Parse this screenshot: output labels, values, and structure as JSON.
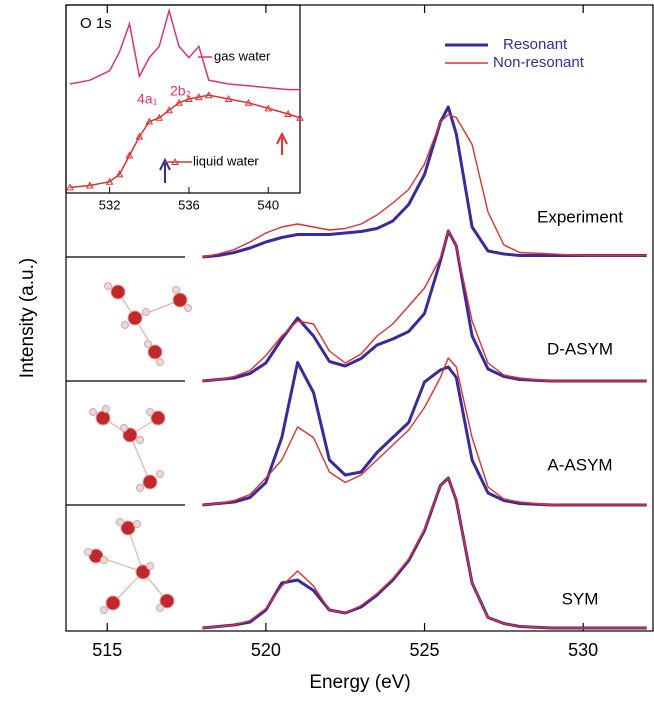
{
  "chart_data": [
    {
      "type": "line",
      "xlabel": "Energy (eV)",
      "ylabel": "Intensity (a.u.)",
      "xlim": [
        513.7,
        532.2
      ],
      "xticks": [
        515,
        520,
        525,
        530
      ],
      "x": [
        518,
        518.5,
        519,
        519.5,
        520,
        520.5,
        521,
        521.5,
        522,
        522.5,
        523,
        523.5,
        524,
        524.5,
        525,
        525.5,
        525.75,
        526,
        526.5,
        527,
        527.5,
        528,
        529,
        530,
        531,
        532
      ],
      "panels": [
        {
          "label": "Experiment",
          "series": [
            {
              "name": "Resonant",
              "color": "#3a2a9a",
              "values": [
                0,
                0.01,
                0.03,
                0.06,
                0.1,
                0.13,
                0.15,
                0.15,
                0.15,
                0.16,
                0.17,
                0.19,
                0.24,
                0.35,
                0.55,
                0.9,
                1.0,
                0.82,
                0.2,
                0.04,
                0.02,
                0.01,
                0.01,
                0.01,
                0.01,
                0.01
              ]
            },
            {
              "name": "Non-resonant",
              "color": "#e03030",
              "values": [
                0,
                0.02,
                0.05,
                0.1,
                0.16,
                0.2,
                0.22,
                0.2,
                0.18,
                0.19,
                0.22,
                0.28,
                0.36,
                0.45,
                0.62,
                0.9,
                0.95,
                0.93,
                0.75,
                0.3,
                0.08,
                0.03,
                0.02,
                0.01,
                0.01,
                0.01
              ]
            }
          ]
        },
        {
          "label": "D-ASYM",
          "series": [
            {
              "name": "Resonant",
              "color": "#3a2a9a",
              "values": [
                0,
                0.01,
                0.02,
                0.05,
                0.12,
                0.28,
                0.42,
                0.3,
                0.13,
                0.1,
                0.15,
                0.24,
                0.28,
                0.33,
                0.45,
                0.8,
                1.0,
                0.9,
                0.3,
                0.08,
                0.03,
                0.01,
                0,
                0,
                0,
                0
              ]
            },
            {
              "name": "Non-resonant",
              "color": "#e03030",
              "values": [
                0,
                0.01,
                0.03,
                0.07,
                0.17,
                0.3,
                0.4,
                0.38,
                0.2,
                0.12,
                0.18,
                0.3,
                0.38,
                0.5,
                0.62,
                0.82,
                1.0,
                0.9,
                0.4,
                0.12,
                0.04,
                0.02,
                0,
                0,
                0,
                0
              ]
            }
          ]
        },
        {
          "label": "A-ASYM",
          "series": [
            {
              "name": "Resonant",
              "color": "#3a2a9a",
              "values": [
                0,
                0.01,
                0.02,
                0.05,
                0.15,
                0.45,
                0.95,
                0.75,
                0.3,
                0.2,
                0.22,
                0.35,
                0.45,
                0.55,
                0.82,
                0.9,
                0.92,
                0.85,
                0.3,
                0.08,
                0.03,
                0.01,
                0,
                0,
                0,
                0
              ]
            },
            {
              "name": "Non-resonant",
              "color": "#e03030",
              "values": [
                0,
                0.01,
                0.03,
                0.07,
                0.18,
                0.3,
                0.52,
                0.45,
                0.22,
                0.15,
                0.2,
                0.3,
                0.4,
                0.5,
                0.65,
                0.85,
                0.98,
                0.92,
                0.45,
                0.12,
                0.04,
                0.02,
                0,
                0,
                0,
                0
              ]
            }
          ]
        },
        {
          "label": "SYM",
          "series": [
            {
              "name": "Resonant",
              "color": "#3a2a9a",
              "values": [
                0,
                0.01,
                0.02,
                0.04,
                0.12,
                0.3,
                0.32,
                0.25,
                0.12,
                0.1,
                0.14,
                0.22,
                0.32,
                0.45,
                0.65,
                0.95,
                1.0,
                0.85,
                0.3,
                0.07,
                0.03,
                0.01,
                0,
                0,
                0,
                0
              ]
            },
            {
              "name": "Non-resonant",
              "color": "#e03030",
              "values": [
                0,
                0.01,
                0.02,
                0.05,
                0.13,
                0.28,
                0.38,
                0.28,
                0.12,
                0.1,
                0.15,
                0.23,
                0.33,
                0.46,
                0.66,
                0.95,
                1.0,
                0.85,
                0.3,
                0.07,
                0.03,
                0.01,
                0,
                0,
                0,
                0
              ]
            }
          ]
        }
      ]
    },
    {
      "type": "line",
      "title": "O 1s",
      "xlim": [
        529.8,
        541.6
      ],
      "xticks": [
        532,
        536,
        540
      ],
      "ylim": [
        0,
        1
      ],
      "x": [
        530,
        531,
        532,
        532.5,
        533,
        533.5,
        534,
        534.5,
        535,
        535.5,
        536,
        536.5,
        537,
        538,
        539,
        540,
        541,
        541.6
      ],
      "series": [
        {
          "name": "gas water",
          "color": "#e0307a",
          "values": [
            0.58,
            0.6,
            0.65,
            0.75,
            0.9,
            0.62,
            0.72,
            0.78,
            0.97,
            0.78,
            0.72,
            0.78,
            0.6,
            0.58,
            0.57,
            0.56,
            0.55,
            0.55
          ]
        },
        {
          "name": "liquid water",
          "color": "#e03030",
          "marker": "triangle",
          "values": [
            0.03,
            0.04,
            0.06,
            0.1,
            0.2,
            0.3,
            0.38,
            0.4,
            0.44,
            0.48,
            0.5,
            0.51,
            0.52,
            0.5,
            0.48,
            0.45,
            0.42,
            0.4
          ]
        }
      ],
      "annotations": [
        "4a₁",
        "2b₂"
      ]
    }
  ]
}
